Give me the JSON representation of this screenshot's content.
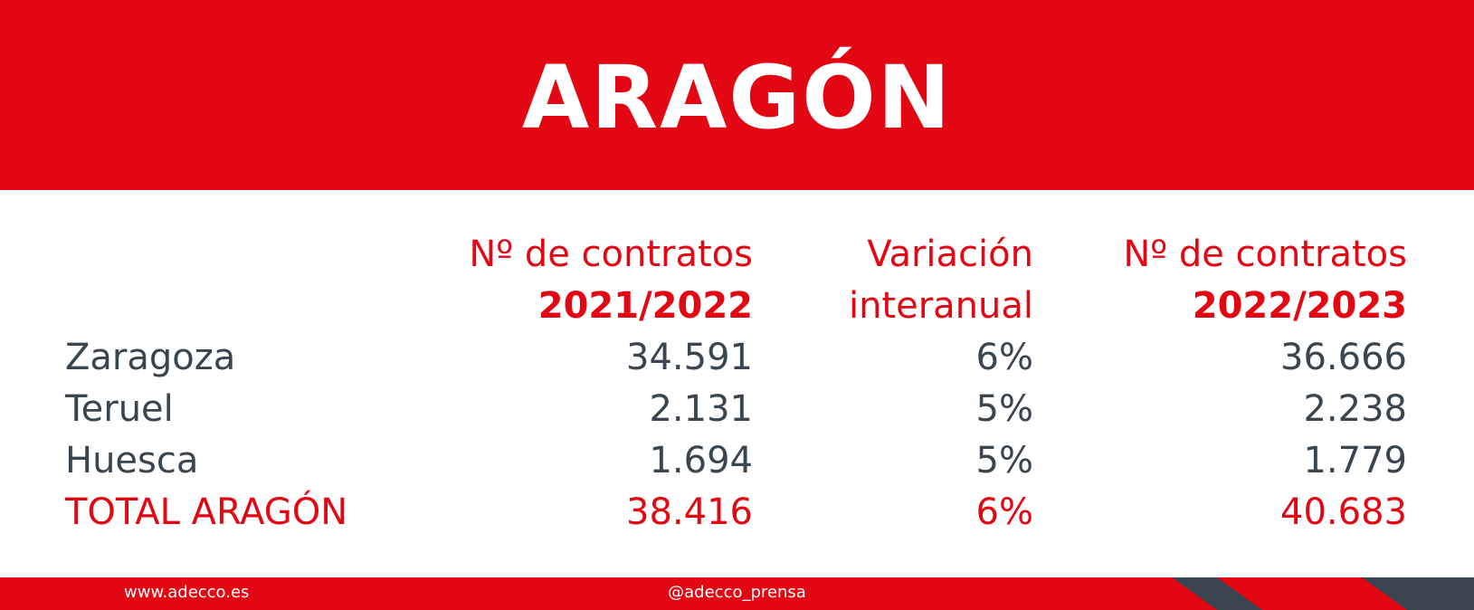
{
  "header": {
    "title": "ARAGÓN"
  },
  "table": {
    "columns": [
      {
        "line1": "Nº de contratos",
        "line2": "2021/2022"
      },
      {
        "line1": "Variación",
        "line2": "interanual"
      },
      {
        "line1": "Nº de contratos",
        "line2": "2022/2023"
      }
    ],
    "rows": [
      [
        "Zaragoza",
        "34.591",
        "6%",
        "36.666"
      ],
      [
        "Teruel",
        "2.131",
        "5%",
        "2.238"
      ],
      [
        "Huesca",
        "1.694",
        "5%",
        "1.779"
      ],
      [
        "TOTAL ARAGÓN",
        "38.416",
        "6%",
        "40.683"
      ]
    ]
  },
  "footer": {
    "website": "www.adecco.es",
    "social": "@adecco_prensa"
  }
}
